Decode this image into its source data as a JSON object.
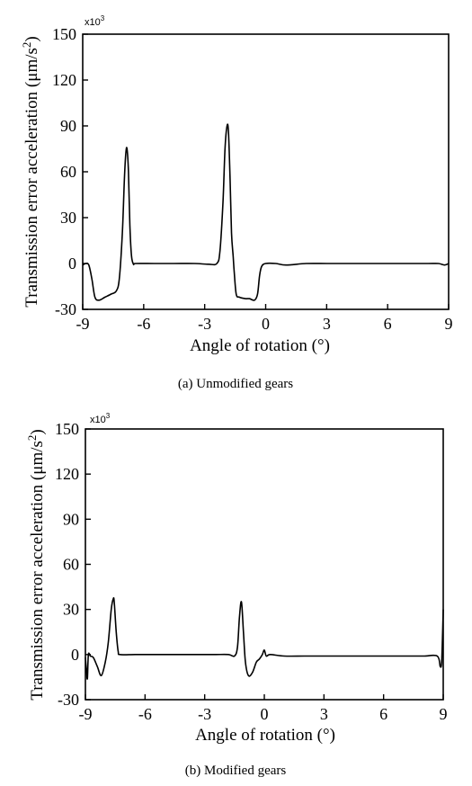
{
  "figure": {
    "colors": {
      "line": "#000000",
      "frame": "#000000",
      "background": "#ffffff"
    }
  },
  "chart_data": [
    {
      "type": "line",
      "caption": "(a) Unmodified gears",
      "xlabel": "Angle of rotation (°)",
      "ylabel_main": "Transmission error acceleration (μm/s",
      "ylabel_sup": "2",
      "ylabel_close": ")",
      "multiplier": "x10",
      "multiplier_sup": "3",
      "xlim": [
        -9,
        9
      ],
      "ylim": [
        -30,
        150
      ],
      "xticks": [
        -9,
        -6,
        -3,
        0,
        3,
        6,
        9
      ],
      "xtick_labels": [
        "-9",
        "-6",
        "-3",
        "0",
        "3",
        "6",
        "9"
      ],
      "yticks": [
        -30,
        0,
        30,
        60,
        90,
        120,
        150
      ],
      "ytick_labels": [
        "-30",
        "0",
        "30",
        "60",
        "90",
        "120",
        "150"
      ],
      "grid": false,
      "series": [
        {
          "x": [
            -9,
            -8.85,
            -8.7,
            -8.55,
            -8.4,
            -8.2,
            -7.9,
            -7.6,
            -7.35,
            -7.2,
            -7.05,
            -6.95,
            -6.88,
            -6.82,
            -6.75,
            -6.68,
            -6.6,
            -6.5,
            -6.4,
            -5.5,
            -4.5,
            -3.5,
            -2.8,
            -2.4,
            -2.25,
            -2.1,
            -2.0,
            -1.9,
            -1.83,
            -1.75,
            -1.68,
            -1.6,
            -1.55,
            -1.45,
            -1.3,
            -1.0,
            -0.8,
            -0.55,
            -0.4,
            -0.3,
            -0.2,
            0,
            0.5,
            1.0,
            2.0,
            3.0,
            4.0,
            5.0,
            6.0,
            7.0,
            8.0,
            8.5,
            8.8,
            9.0
          ],
          "y": [
            -1,
            0,
            -1,
            -10,
            -22,
            -24,
            -22,
            -20,
            -18,
            -10,
            20,
            55,
            72,
            75,
            60,
            25,
            5,
            -0.5,
            0,
            0,
            0,
            0,
            -0.5,
            0,
            8,
            40,
            75,
            90,
            86,
            55,
            20,
            5,
            -5,
            -20,
            -22,
            -23,
            -23,
            -24,
            -20,
            -8,
            -2,
            0,
            0,
            -1,
            0,
            0,
            0,
            0,
            0,
            0,
            0,
            0,
            -1,
            0
          ]
        }
      ]
    },
    {
      "type": "line",
      "caption": "(b) Modified gears",
      "xlabel": "Angle of rotation (°)",
      "ylabel_main": "Transmission error acceleration (μm/s",
      "ylabel_sup": "2",
      "ylabel_close": ")",
      "multiplier": "x10",
      "multiplier_sup": "3",
      "xlim": [
        -9,
        9
      ],
      "ylim": [
        -30,
        150
      ],
      "xticks": [
        -9,
        -6,
        -3,
        0,
        3,
        6,
        9
      ],
      "xtick_labels": [
        "-9",
        "-6",
        "-3",
        "0",
        "3",
        "6",
        "9"
      ],
      "yticks": [
        -30,
        0,
        30,
        60,
        90,
        120,
        150
      ],
      "ytick_labels": [
        "-30",
        "0",
        "30",
        "60",
        "90",
        "120",
        "150"
      ],
      "grid": false,
      "series": [
        {
          "x": [
            -9,
            -8.95,
            -8.9,
            -8.85,
            -8.75,
            -8.6,
            -8.4,
            -8.2,
            -8.0,
            -7.85,
            -7.7,
            -7.6,
            -7.55,
            -7.45,
            -7.35,
            -7.25,
            -6.5,
            -5.5,
            -4.5,
            -3.5,
            -2.5,
            -1.8,
            -1.5,
            -1.35,
            -1.25,
            -1.15,
            -1.05,
            -0.95,
            -0.8,
            -0.6,
            -0.4,
            -0.25,
            -0.1,
            0.0,
            0.1,
            0.3,
            1,
            2,
            3,
            4,
            5,
            6,
            7,
            8,
            8.7,
            8.85,
            8.92,
            8.97,
            9.0
          ],
          "y": [
            -2,
            -10,
            -16,
            0,
            -1,
            -2,
            -8,
            -14,
            -5,
            8,
            30,
            37,
            35,
            15,
            2,
            0,
            0,
            0,
            0,
            0,
            0,
            0,
            -1,
            5,
            25,
            35,
            15,
            -5,
            -14,
            -12,
            -5,
            -3,
            0,
            3,
            -1,
            0,
            -1,
            -1,
            -1,
            -1,
            -1,
            -1,
            -1,
            -1,
            -1,
            -8,
            -5,
            15,
            30
          ]
        }
      ]
    }
  ]
}
